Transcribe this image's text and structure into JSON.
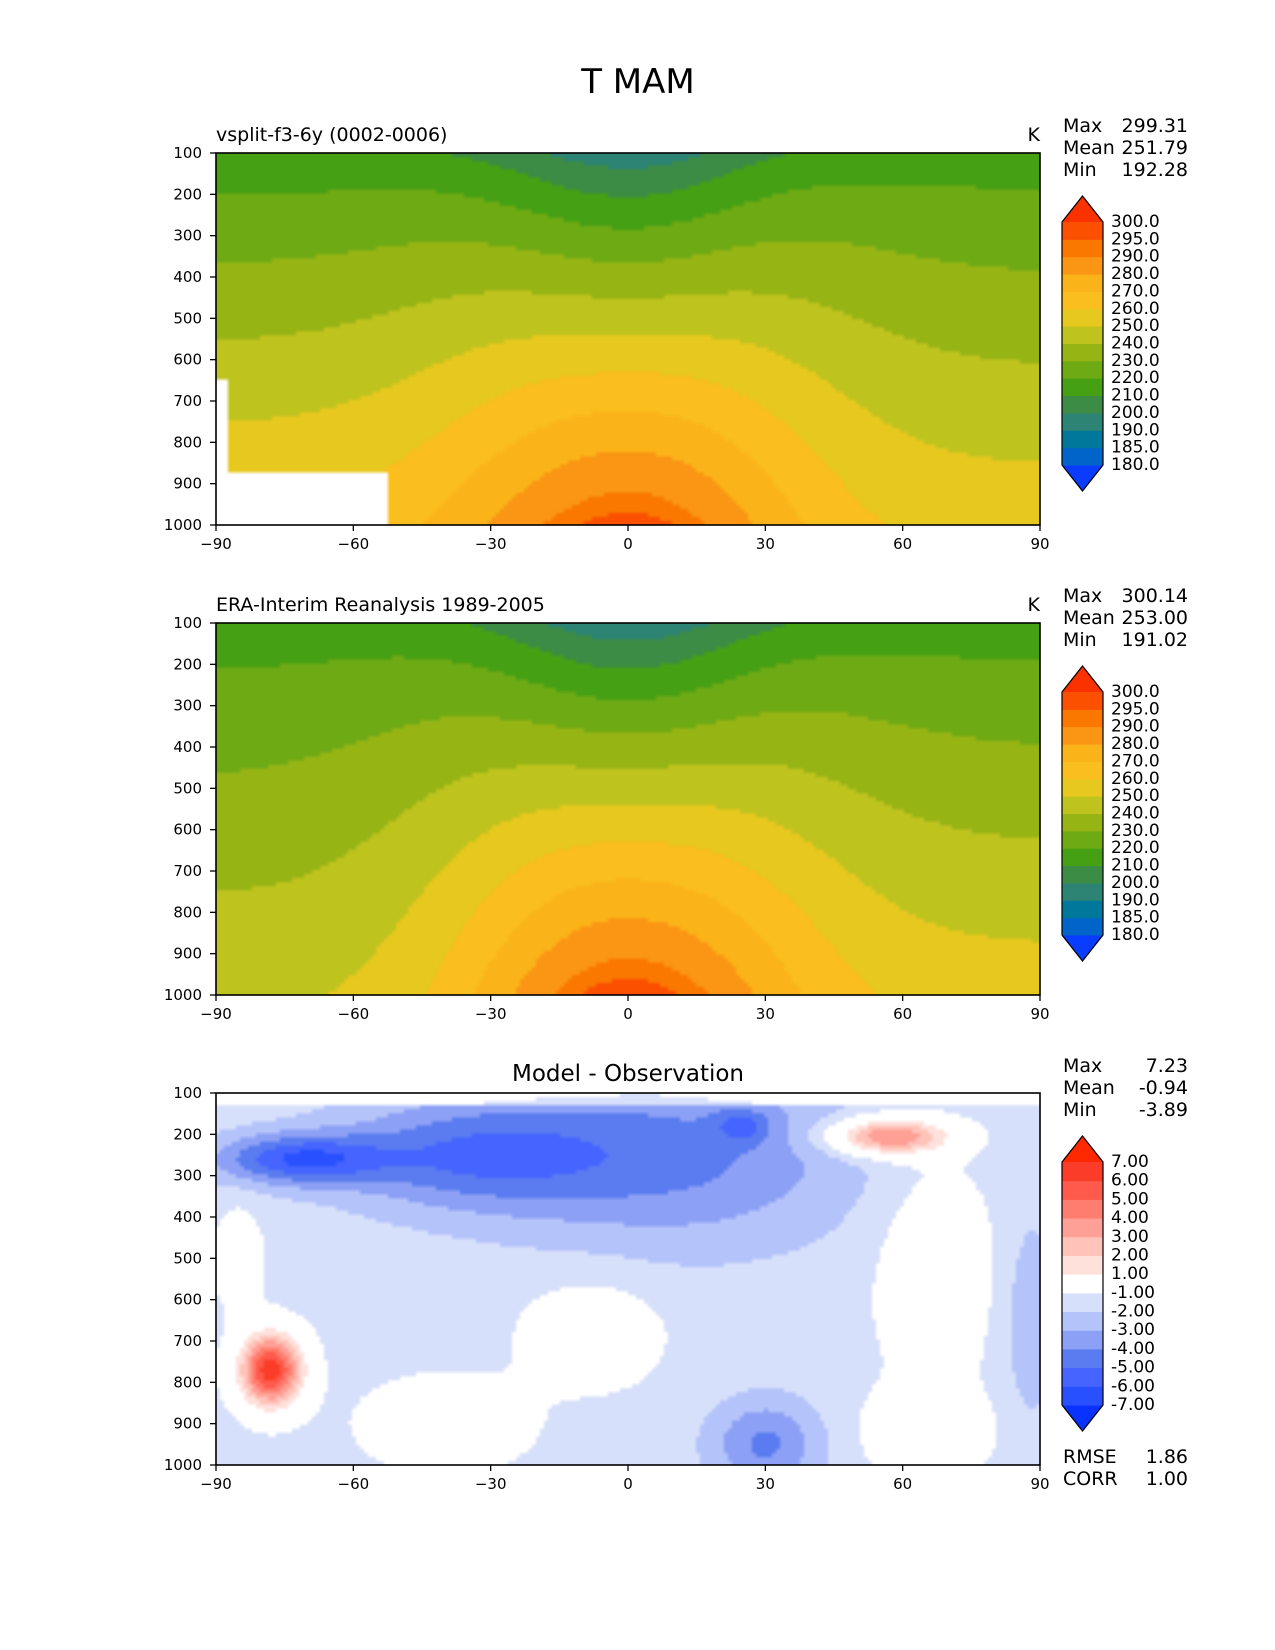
{
  "figure": {
    "title": "T MAM"
  },
  "chart_data": [
    {
      "type": "heatmap",
      "title": "vsplit-f3-6y (0002-0006)",
      "units": "K",
      "xlabel": "",
      "ylabel": "",
      "x_ticks": [
        "−90",
        "−60",
        "−30",
        "0",
        "30",
        "60",
        "90"
      ],
      "y_ticks": [
        "100",
        "200",
        "300",
        "400",
        "500",
        "600",
        "700",
        "800",
        "900",
        "1000"
      ],
      "xlim": [
        -90,
        90
      ],
      "ylim": [
        1000,
        100
      ],
      "stats": [
        {
          "label": "Max",
          "value": "299.31"
        },
        {
          "label": "Mean",
          "value": "251.79"
        },
        {
          "label": "Min",
          "value": "192.28"
        }
      ],
      "colorbar": {
        "labels": [
          "180.0",
          "185.0",
          "190.0",
          "200.0",
          "210.0",
          "220.0",
          "230.0",
          "240.0",
          "250.0",
          "260.0",
          "270.0",
          "280.0",
          "290.0",
          "295.0",
          "300.0"
        ],
        "colors": [
          "#0a3cff",
          "#0064c8",
          "#00789c",
          "#2d8474",
          "#3c8c46",
          "#46a014",
          "#6eaa14",
          "#96b414",
          "#bec31e",
          "#e6c81e",
          "#fabe1e",
          "#fab419",
          "#fa9614",
          "#fa7800",
          "#fa5000",
          "#fa3200"
        ],
        "extend": "both"
      },
      "contour_levels": [
        180,
        185,
        190,
        200,
        210,
        220,
        230,
        240,
        250,
        260,
        270,
        280,
        290,
        295,
        300
      ],
      "shape": {
        "equator": 298,
        "pole_south": 262,
        "pole_north": 256,
        "top_south": 212,
        "top_north": 214,
        "top_equator": 193
      },
      "masked": [
        {
          "lat_min": -90,
          "lat_max": -87,
          "p_min": 650,
          "p_max": 1000
        },
        {
          "lat_min": -87,
          "lat_max": -52,
          "p_min": 870,
          "p_max": 1000
        }
      ]
    },
    {
      "type": "heatmap",
      "title": "ERA-Interim Reanalysis 1989-2005",
      "units": "K",
      "xlabel": "",
      "ylabel": "",
      "x_ticks": [
        "−90",
        "−60",
        "−30",
        "0",
        "30",
        "60",
        "90"
      ],
      "y_ticks": [
        "100",
        "200",
        "300",
        "400",
        "500",
        "600",
        "700",
        "800",
        "900",
        "1000"
      ],
      "xlim": [
        -90,
        90
      ],
      "ylim": [
        1000,
        100
      ],
      "stats": [
        {
          "label": "Max",
          "value": "300.14"
        },
        {
          "label": "Mean",
          "value": "253.00"
        },
        {
          "label": "Min",
          "value": "191.02"
        }
      ],
      "colorbar": {
        "labels": [
          "180.0",
          "185.0",
          "190.0",
          "200.0",
          "210.0",
          "220.0",
          "230.0",
          "240.0",
          "250.0",
          "260.0",
          "270.0",
          "280.0",
          "290.0",
          "295.0",
          "300.0"
        ],
        "colors": [
          "#0a3cff",
          "#0064c8",
          "#00789c",
          "#2d8474",
          "#3c8c46",
          "#46a014",
          "#6eaa14",
          "#96b414",
          "#bec31e",
          "#e6c81e",
          "#fabe1e",
          "#fab419",
          "#fa9614",
          "#fa7800",
          "#fa5000",
          "#fa3200"
        ],
        "extend": "both"
      },
      "contour_levels": [
        180,
        185,
        190,
        200,
        210,
        220,
        230,
        240,
        250,
        260,
        270,
        280,
        290,
        295,
        300
      ],
      "shape": {
        "equator": 299,
        "pole_south": 248,
        "pole_north": 255,
        "top_south": 214,
        "top_north": 214,
        "top_equator": 192
      },
      "masked": []
    },
    {
      "type": "heatmap",
      "title": "Model - Observation",
      "units": "",
      "xlabel": "",
      "ylabel": "",
      "x_ticks": [
        "−90",
        "−60",
        "−30",
        "0",
        "30",
        "60",
        "90"
      ],
      "y_ticks": [
        "100",
        "200",
        "300",
        "400",
        "500",
        "600",
        "700",
        "800",
        "900",
        "1000"
      ],
      "xlim": [
        -90,
        90
      ],
      "ylim": [
        1000,
        100
      ],
      "stats": [
        {
          "label": "Max",
          "value": "7.23"
        },
        {
          "label": "Mean",
          "value": "-0.94"
        },
        {
          "label": "Min",
          "value": "-3.89"
        }
      ],
      "colorbar": {
        "labels": [
          "-7.00",
          "-6.00",
          "-5.00",
          "-4.00",
          "-3.00",
          "-2.00",
          "-1.00",
          "1.00",
          "2.00",
          "3.00",
          "4.00",
          "5.00",
          "6.00",
          "7.00"
        ],
        "colors": [
          "#0a32ff",
          "#2850ff",
          "#4664ff",
          "#5a7cf0",
          "#8ca0f5",
          "#b4c3fa",
          "#d7e0fa",
          "#ffffff",
          "#ffe1dc",
          "#ffc3b9",
          "#ffa096",
          "#ff7d6e",
          "#ff5a4b",
          "#fa3c28",
          "#ff2800"
        ],
        "extend": "both"
      },
      "contour_levels": [
        -7,
        -6,
        -5,
        -4,
        -3,
        -2,
        -1,
        1,
        2,
        3,
        4,
        5,
        6,
        7
      ],
      "bumps": [
        {
          "lat": -72,
          "p": 260,
          "amp": -4.2,
          "dlat": 18,
          "dp": 60
        },
        {
          "lat": -35,
          "p": 250,
          "amp": -3.2,
          "dlat": 30,
          "dp": 130
        },
        {
          "lat": 10,
          "p": 250,
          "amp": -2.8,
          "dlat": 40,
          "dp": 220
        },
        {
          "lat": 25,
          "p": 180,
          "amp": -2.0,
          "dlat": 6,
          "dp": 40
        },
        {
          "lat": 57,
          "p": 205,
          "amp": 5.8,
          "dlat": 13,
          "dp": 45
        },
        {
          "lat": -78,
          "p": 770,
          "amp": 8.0,
          "dlat": 7,
          "dp": 90
        },
        {
          "lat": 30,
          "p": 950,
          "amp": -2.8,
          "dlat": 12,
          "dp": 110
        },
        {
          "lat": 88,
          "p": 650,
          "amp": -1.4,
          "dlat": 6,
          "dp": 250
        },
        {
          "lat": -48,
          "p": 990,
          "amp": 1.6,
          "dlat": 2,
          "dp": 40
        }
      ],
      "background": {
        "base": -1.4,
        "white_regions": [
          {
            "lat": -8,
            "p": 680,
            "dlat": 15,
            "dp": 130
          },
          {
            "lat": 67,
            "p": 520,
            "dlat": 13,
            "dp": 280
          },
          {
            "lat": -40,
            "p": 900,
            "dlat": 18,
            "dp": 110
          },
          {
            "lat": 65,
            "p": 920,
            "dlat": 14,
            "dp": 100
          },
          {
            "lat": -85,
            "p": 500,
            "dlat": 5,
            "dp": 120
          }
        ]
      },
      "footer_stats": [
        {
          "label": "RMSE",
          "value": "1.86"
        },
        {
          "label": "CORR",
          "value": "1.00"
        }
      ]
    }
  ]
}
